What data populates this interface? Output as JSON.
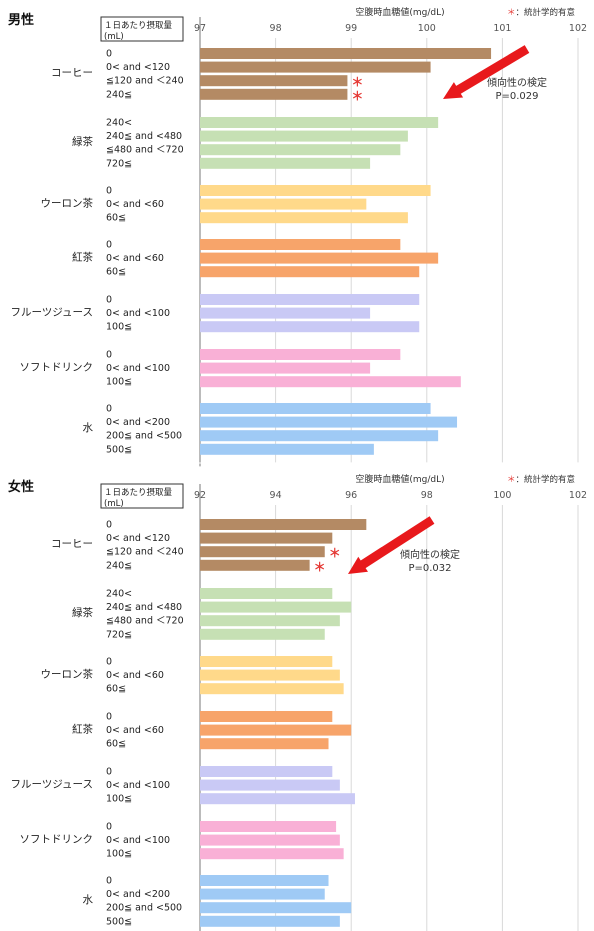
{
  "legend": {
    "star": "＊",
    "text": "：統計学的有意"
  },
  "chart_data": [
    {
      "type": "bar",
      "orientation": "horizontal",
      "title": "男性",
      "xlabel": "空腹時血糖値(mg/dL)",
      "unit_label_line1": "１日あたり摂取量",
      "unit_label_line2": "(mL)",
      "xlim": [
        97,
        102
      ],
      "ticks": [
        97,
        98,
        99,
        100,
        101,
        102
      ],
      "trend_label": "傾向性の検定",
      "trend_p": "P=0.029",
      "groups": [
        {
          "name": "コーヒー",
          "color": "#b48a64",
          "levels": [
            "0",
            "0< and <120",
            "≦120 and ＜240",
            "240≦"
          ],
          "values": [
            100.85,
            100.05,
            98.95,
            98.95
          ],
          "significant": [
            false,
            false,
            true,
            true
          ]
        },
        {
          "name": "緑茶",
          "color": "#c6e0b4",
          "levels": [
            "240<",
            "240≦ and <480",
            "≦480 and ＜720",
            "720≦"
          ],
          "values": [
            100.15,
            99.75,
            99.65,
            99.25
          ],
          "significant": [
            false,
            false,
            false,
            false
          ]
        },
        {
          "name": "ウーロン茶",
          "color": "#ffd98a",
          "levels": [
            "0",
            "0< and <60",
            "60≦"
          ],
          "values": [
            100.05,
            99.2,
            99.75
          ],
          "significant": [
            false,
            false,
            false
          ]
        },
        {
          "name": "紅茶",
          "color": "#f7a46a",
          "levels": [
            "0",
            "0< and <60",
            "60≦"
          ],
          "values": [
            99.65,
            100.15,
            99.9
          ],
          "significant": [
            false,
            false,
            false
          ]
        },
        {
          "name": "フルーツジュース",
          "color": "#c9c9f5",
          "levels": [
            "0",
            "0< and <100",
            "100≦"
          ],
          "values": [
            99.9,
            99.25,
            99.9
          ],
          "significant": [
            false,
            false,
            false
          ]
        },
        {
          "name": "ソフトドリンク",
          "color": "#f9b0d6",
          "levels": [
            "0",
            "0< and <100",
            "100≦"
          ],
          "values": [
            99.65,
            99.25,
            100.45
          ],
          "significant": [
            false,
            false,
            false
          ]
        },
        {
          "name": "水",
          "color": "#9fcaf5",
          "levels": [
            "0",
            "0< and <200",
            "200≦ and <500",
            "500≦"
          ],
          "values": [
            100.05,
            100.4,
            100.15,
            99.3
          ],
          "significant": [
            false,
            false,
            false,
            false
          ]
        }
      ]
    },
    {
      "type": "bar",
      "orientation": "horizontal",
      "title": "女性",
      "xlabel": "空腹時血糖値(mg/dL)",
      "unit_label_line1": "１日あたり摂取量",
      "unit_label_line2": "(mL)",
      "xlim": [
        92,
        102
      ],
      "ticks": [
        92,
        94,
        96,
        98,
        100,
        102
      ],
      "trend_label": "傾向性の検定",
      "trend_p": "P=0.032",
      "groups": [
        {
          "name": "コーヒー",
          "color": "#b48a64",
          "levels": [
            "0",
            "0< and <120",
            "≦120 and ＜240",
            "240≦"
          ],
          "values": [
            96.4,
            95.5,
            95.3,
            94.9
          ],
          "significant": [
            false,
            false,
            true,
            true
          ]
        },
        {
          "name": "緑茶",
          "color": "#c6e0b4",
          "levels": [
            "240<",
            "240≦ and <480",
            "≦480 and ＜720",
            "720≦"
          ],
          "values": [
            95.5,
            96.0,
            95.7,
            95.3
          ],
          "significant": [
            false,
            false,
            false,
            false
          ]
        },
        {
          "name": "ウーロン茶",
          "color": "#ffd98a",
          "levels": [
            "0",
            "0< and <60",
            "60≦"
          ],
          "values": [
            95.5,
            95.7,
            95.8
          ],
          "significant": [
            false,
            false,
            false
          ]
        },
        {
          "name": "紅茶",
          "color": "#f7a46a",
          "levels": [
            "0",
            "0< and <60",
            "60≦"
          ],
          "values": [
            95.5,
            96.0,
            95.4
          ],
          "significant": [
            false,
            false,
            false
          ]
        },
        {
          "name": "フルーツジュース",
          "color": "#c9c9f5",
          "levels": [
            "0",
            "0< and <100",
            "100≦"
          ],
          "values": [
            95.5,
            95.7,
            96.1
          ],
          "significant": [
            false,
            false,
            false
          ]
        },
        {
          "name": "ソフトドリンク",
          "color": "#f9b0d6",
          "levels": [
            "0",
            "0< and <100",
            "100≦"
          ],
          "values": [
            95.6,
            95.7,
            95.8
          ],
          "significant": [
            false,
            false,
            false
          ]
        },
        {
          "name": "水",
          "color": "#9fcaf5",
          "levels": [
            "0",
            "0< and <200",
            "200≦ and <500",
            "500≦"
          ],
          "values": [
            95.4,
            95.3,
            96.0,
            95.7
          ],
          "significant": [
            false,
            false,
            false,
            false
          ]
        }
      ]
    }
  ]
}
